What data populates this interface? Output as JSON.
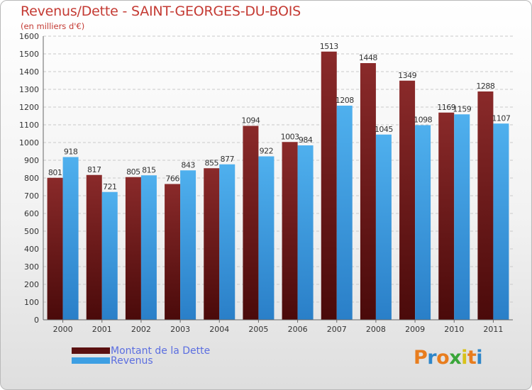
{
  "title": "Revenus/Dette - SAINT-GEORGES-DU-BOIS",
  "subtitle": "(en milliers d'€)",
  "logo": {
    "letters": [
      "P",
      "r",
      "o",
      "x",
      "i",
      "t",
      "i"
    ],
    "colors": [
      "#e87d1e",
      "#2e86c9",
      "#e87d1e",
      "#3aa63a",
      "#d8c21a",
      "#e87d1e",
      "#2e86c9"
    ]
  },
  "colors": {
    "dette": "#7a1f1f",
    "revenus": "#3d9fe3"
  },
  "chart_data": {
    "type": "bar",
    "categories": [
      "2000",
      "2001",
      "2002",
      "2003",
      "2004",
      "2005",
      "2006",
      "2007",
      "2008",
      "2009",
      "2010",
      "2011"
    ],
    "series": [
      {
        "name": "Montant de la Dette",
        "values": [
          801,
          817,
          805,
          766,
          855,
          1094,
          1003,
          1513,
          1448,
          1349,
          1169,
          1288
        ]
      },
      {
        "name": "Revenus",
        "values": [
          918,
          721,
          815,
          843,
          877,
          922,
          984,
          1208,
          1045,
          1098,
          1159,
          1107
        ]
      }
    ],
    "ylim": [
      0,
      1600
    ],
    "yticks": [
      0,
      100,
      200,
      300,
      400,
      500,
      600,
      700,
      800,
      900,
      1000,
      1100,
      1200,
      1300,
      1400,
      1500,
      1600
    ],
    "grid": true,
    "legend": "bottom-left"
  }
}
